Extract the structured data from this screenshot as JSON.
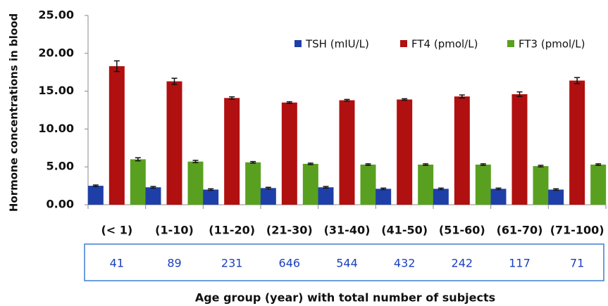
{
  "chart_data": {
    "type": "bar",
    "y_label": "Hormone concentrations in blood",
    "x_label": "Age group (year) with total  number of subjects",
    "categories": [
      "(< 1)",
      "(1-10)",
      "(11-20)",
      "(21-30)",
      "(31-40)",
      "(41-50)",
      "(51-60)",
      "(61-70)",
      "(71-100)"
    ],
    "subject_counts": [
      41,
      89,
      231,
      646,
      544,
      432,
      242,
      117,
      71
    ],
    "series": [
      {
        "name": "TSH (mIU/L)",
        "color": "#1f3fa8",
        "values": [
          2.5,
          2.3,
          2.0,
          2.2,
          2.3,
          2.1,
          2.1,
          2.1,
          2.0
        ],
        "errors": [
          0.1,
          0.1,
          0.1,
          0.1,
          0.1,
          0.1,
          0.1,
          0.1,
          0.1
        ]
      },
      {
        "name": "FT4 (pmol/L)",
        "color": "#b01010",
        "values": [
          18.3,
          16.3,
          14.1,
          13.5,
          13.8,
          13.9,
          14.3,
          14.6,
          16.4
        ],
        "errors": [
          0.7,
          0.4,
          0.15,
          0.1,
          0.1,
          0.1,
          0.2,
          0.3,
          0.4
        ]
      },
      {
        "name": "FT3 (pmol/L)",
        "color": "#5aa020",
        "values": [
          6.0,
          5.7,
          5.6,
          5.4,
          5.3,
          5.3,
          5.3,
          5.1,
          5.3
        ],
        "errors": [
          0.2,
          0.15,
          0.1,
          0.1,
          0.1,
          0.1,
          0.1,
          0.1,
          0.1
        ]
      }
    ],
    "ylim": [
      0,
      25
    ],
    "yticks": [
      {
        "value": 0,
        "label": "0.00"
      },
      {
        "value": 5,
        "label": "5.00"
      },
      {
        "value": 10,
        "label": "10.00"
      },
      {
        "value": 15,
        "label": "15.00"
      },
      {
        "value": 20,
        "label": "20.00"
      },
      {
        "value": 25,
        "label": "25.00"
      }
    ],
    "grid": false,
    "legend": "top-right"
  }
}
